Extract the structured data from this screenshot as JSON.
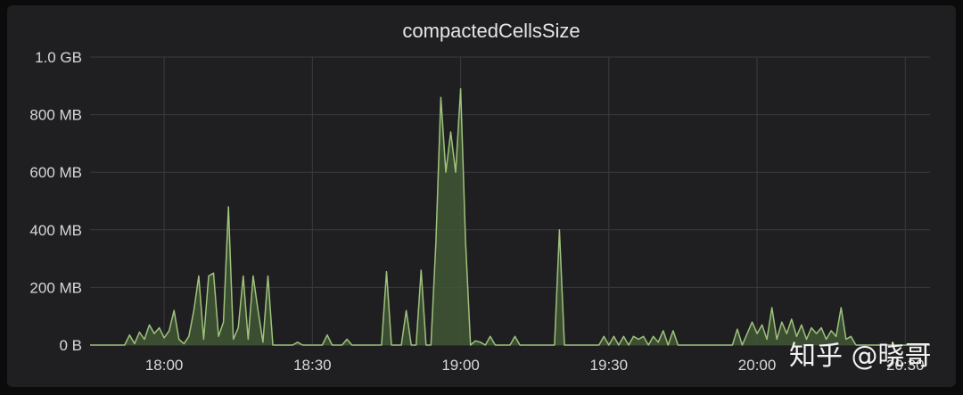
{
  "chart_data": {
    "type": "area",
    "title": "compactedCellsSize",
    "xlabel": "",
    "ylabel": "",
    "x_ticks": [
      "18:00",
      "18:30",
      "19:00",
      "19:30",
      "20:00",
      "20:30"
    ],
    "y_ticks": [
      "0 B",
      "200 MB",
      "400 MB",
      "600 MB",
      "800 MB",
      "1.0 GB"
    ],
    "ylim": [
      0,
      1000
    ],
    "xlim": [
      "17:45",
      "20:35"
    ],
    "grid": true,
    "colors": {
      "line": "#9ec27c",
      "fill": "#445a36"
    },
    "series": [
      {
        "values": [
          [
            "17:45",
            0
          ],
          [
            "17:52",
            0
          ],
          [
            "17:53",
            35
          ],
          [
            "17:54",
            5
          ],
          [
            "17:55",
            45
          ],
          [
            "17:56",
            20
          ],
          [
            "17:57",
            70
          ],
          [
            "17:58",
            40
          ],
          [
            "17:59",
            60
          ],
          [
            "18:00",
            25
          ],
          [
            "18:01",
            50
          ],
          [
            "18:02",
            120
          ],
          [
            "18:03",
            20
          ],
          [
            "18:04",
            5
          ],
          [
            "18:05",
            30
          ],
          [
            "18:06",
            120
          ],
          [
            "18:07",
            240
          ],
          [
            "18:08",
            20
          ],
          [
            "18:09",
            240
          ],
          [
            "18:10",
            250
          ],
          [
            "18:11",
            30
          ],
          [
            "18:12",
            80
          ],
          [
            "18:13",
            480
          ],
          [
            "18:14",
            20
          ],
          [
            "18:15",
            60
          ],
          [
            "18:16",
            240
          ],
          [
            "18:17",
            20
          ],
          [
            "18:18",
            240
          ],
          [
            "18:19",
            120
          ],
          [
            "18:20",
            10
          ],
          [
            "18:21",
            240
          ],
          [
            "18:22",
            0
          ],
          [
            "18:26",
            0
          ],
          [
            "18:27",
            10
          ],
          [
            "18:28",
            0
          ],
          [
            "18:32",
            0
          ],
          [
            "18:33",
            35
          ],
          [
            "18:34",
            0
          ],
          [
            "18:36",
            0
          ],
          [
            "18:37",
            20
          ],
          [
            "18:38",
            0
          ],
          [
            "18:44",
            0
          ],
          [
            "18:45",
            255
          ],
          [
            "18:46",
            0
          ],
          [
            "18:48",
            0
          ],
          [
            "18:49",
            120
          ],
          [
            "18:50",
            0
          ],
          [
            "18:51",
            0
          ],
          [
            "18:52",
            260
          ],
          [
            "18:53",
            0
          ],
          [
            "18:54",
            0
          ],
          [
            "18:55",
            360
          ],
          [
            "18:56",
            860
          ],
          [
            "18:57",
            600
          ],
          [
            "18:58",
            740
          ],
          [
            "18:59",
            600
          ],
          [
            "19:00",
            890
          ],
          [
            "19:01",
            360
          ],
          [
            "19:02",
            0
          ],
          [
            "19:03",
            15
          ],
          [
            "19:04",
            10
          ],
          [
            "19:05",
            0
          ],
          [
            "19:06",
            30
          ],
          [
            "19:07",
            0
          ],
          [
            "19:10",
            0
          ],
          [
            "19:11",
            30
          ],
          [
            "19:12",
            0
          ],
          [
            "19:19",
            0
          ],
          [
            "19:20",
            400
          ],
          [
            "19:21",
            0
          ],
          [
            "19:28",
            0
          ],
          [
            "19:29",
            30
          ],
          [
            "19:30",
            0
          ],
          [
            "19:31",
            30
          ],
          [
            "19:32",
            0
          ],
          [
            "19:33",
            30
          ],
          [
            "19:34",
            0
          ],
          [
            "19:35",
            30
          ],
          [
            "19:36",
            20
          ],
          [
            "19:37",
            30
          ],
          [
            "19:38",
            0
          ],
          [
            "19:39",
            30
          ],
          [
            "19:40",
            10
          ],
          [
            "19:41",
            50
          ],
          [
            "19:42",
            0
          ],
          [
            "19:43",
            50
          ],
          [
            "19:44",
            0
          ],
          [
            "19:55",
            0
          ],
          [
            "19:56",
            55
          ],
          [
            "19:57",
            0
          ],
          [
            "19:58",
            40
          ],
          [
            "19:59",
            80
          ],
          [
            "20:00",
            40
          ],
          [
            "20:01",
            70
          ],
          [
            "20:02",
            20
          ],
          [
            "20:03",
            130
          ],
          [
            "20:04",
            20
          ],
          [
            "20:05",
            80
          ],
          [
            "20:06",
            40
          ],
          [
            "20:07",
            90
          ],
          [
            "20:08",
            30
          ],
          [
            "20:09",
            70
          ],
          [
            "20:10",
            20
          ],
          [
            "20:11",
            60
          ],
          [
            "20:12",
            40
          ],
          [
            "20:13",
            60
          ],
          [
            "20:14",
            20
          ],
          [
            "20:15",
            50
          ],
          [
            "20:16",
            30
          ],
          [
            "20:17",
            130
          ],
          [
            "20:18",
            20
          ],
          [
            "20:19",
            30
          ],
          [
            "20:20",
            0
          ]
        ]
      }
    ]
  },
  "watermark": "知乎 @晓哥"
}
